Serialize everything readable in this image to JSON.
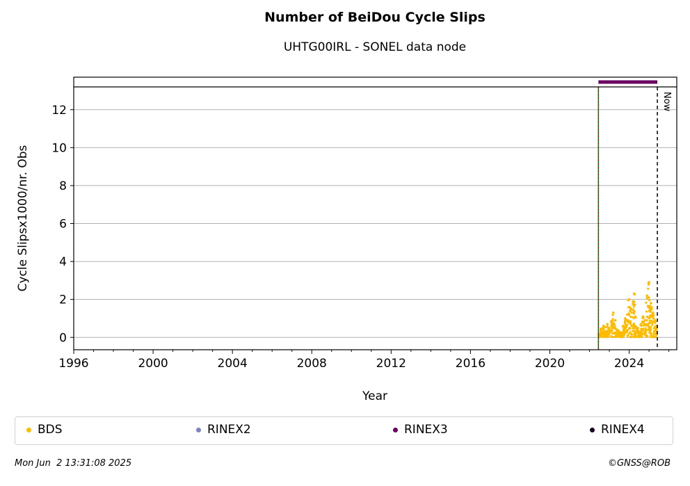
{
  "header": {
    "title": "Number of BeiDou Cycle Slips",
    "subtitle": "UHTG00IRL - SONEL data node"
  },
  "chart_data": {
    "type": "scatter",
    "title": "Number of BeiDou Cycle Slips",
    "subtitle": "UHTG00IRL - SONEL data node",
    "xlabel": "Year",
    "ylabel": "Cycle Slipsx1000/nr. Obs",
    "xlim": [
      1996,
      2026.4
    ],
    "ylim": [
      -0.65,
      13.2
    ],
    "x_ticks": [
      "1996",
      "2000",
      "2004",
      "2008",
      "2012",
      "2016",
      "2020",
      "2024"
    ],
    "y_ticks": [
      "0",
      "2",
      "4",
      "6",
      "8",
      "10",
      "12"
    ],
    "grid": "horizontal",
    "now_label": "Now",
    "now_year": 2025.42,
    "start_year": 2022.45,
    "rinex3_period": [
      2022.45,
      2025.42
    ],
    "series": [
      {
        "name": "BDS",
        "color": "#ffbb00",
        "points": [
          [
            2022.5,
            0.2
          ],
          [
            2022.6,
            0.45
          ],
          [
            2022.7,
            0.6
          ],
          [
            2022.8,
            0.3
          ],
          [
            2022.9,
            0.7
          ],
          [
            2023.0,
            0.5
          ],
          [
            2023.1,
            0.85
          ],
          [
            2023.2,
            1.3
          ],
          [
            2023.3,
            0.9
          ],
          [
            2023.4,
            0.4
          ],
          [
            2023.5,
            0.3
          ],
          [
            2023.6,
            0.25
          ],
          [
            2023.7,
            0.6
          ],
          [
            2023.8,
            1.0
          ],
          [
            2023.9,
            1.2
          ],
          [
            2024.0,
            2.0
          ],
          [
            2024.1,
            1.5
          ],
          [
            2024.2,
            1.9
          ],
          [
            2024.25,
            2.3
          ],
          [
            2024.3,
            1.1
          ],
          [
            2024.4,
            0.5
          ],
          [
            2024.5,
            0.3
          ],
          [
            2024.6,
            0.7
          ],
          [
            2024.7,
            1.1
          ],
          [
            2024.8,
            0.9
          ],
          [
            2024.9,
            2.2
          ],
          [
            2025.0,
            2.9
          ],
          [
            2025.05,
            1.6
          ],
          [
            2025.1,
            1.8
          ],
          [
            2025.2,
            1.3
          ],
          [
            2025.3,
            0.9
          ],
          [
            2025.35,
            0.6
          ]
        ]
      },
      {
        "name": "RINEX2",
        "color": "#8080c0",
        "points": []
      },
      {
        "name": "RINEX3",
        "color": "#6a005f",
        "points": []
      },
      {
        "name": "RINEX4",
        "color": "#1a0020",
        "points": []
      }
    ]
  },
  "footer": {
    "timestamp": "Mon Jun  2 13:31:08 2025",
    "credit": "©GNSS@ROB"
  }
}
